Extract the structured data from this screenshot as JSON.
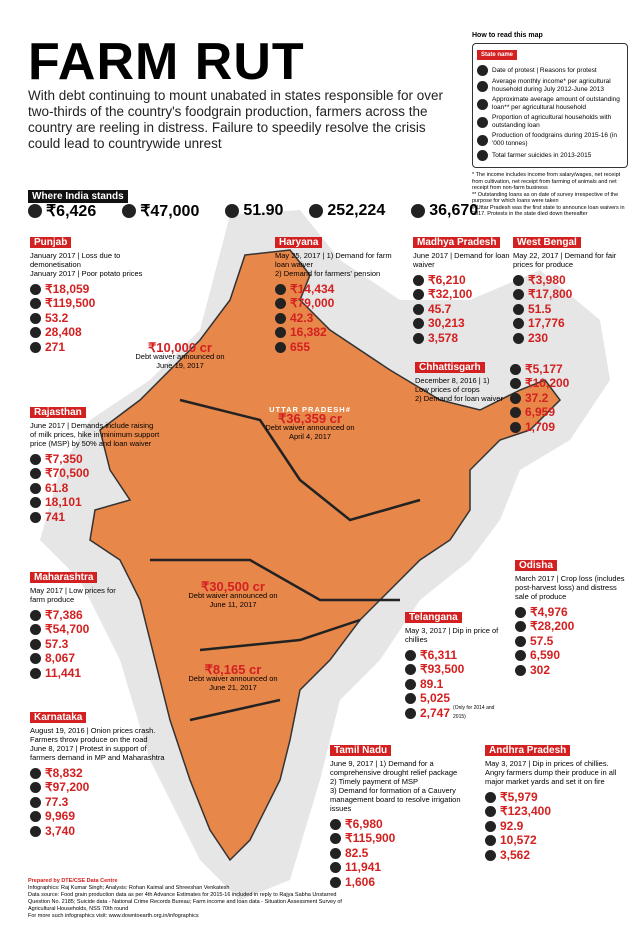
{
  "header": {
    "title": "FARM RUT",
    "intro": "With debt continuing to mount unabated in states responsible for over two-thirds of the country's foodgrain production, farmers across the country are reeling in distress. Failure to speedily resolve the crisis could lead to countrywide unrest"
  },
  "legend": {
    "title": "How to read this map",
    "items": [
      "State name",
      "Date of protest | Reasons for protest",
      "Average monthly income* per agricultural household during July 2012-June 2013",
      "Approximate average amount of outstanding loan** per agricultural household",
      "Proportion of agricultural households with outstanding loan",
      "Production of foodgrains during 2015-16 (in '000 tonnes)",
      "Total farmer suicides in 2013-2015"
    ],
    "notes": [
      "* The income includes income from salary/wages, net receipt from cultivation, net receipt from farming of animals and net receipt from non-farm business",
      "** Outstanding loans as on date of survey irrespective of the purpose for which loans were taken",
      "# Uttar Pradesh was the first state to announce loan waivers in 2017. Protests in the state died down thereafter"
    ]
  },
  "india": {
    "label": "Where India stands",
    "stats": [
      "₹6,426",
      "₹47,000",
      "51.90",
      "252,224",
      "36,670"
    ]
  },
  "states": [
    {
      "name": "Punjab",
      "protests": [
        "January 2017 | Loss due to demonetisation",
        "January 2017 | Poor potato prices"
      ],
      "stats": [
        "₹18,059",
        "₹119,500",
        "53.2",
        "28,408",
        "271"
      ]
    },
    {
      "name": "Haryana",
      "protests": [
        "May 25, 2017 | 1) Demand for farm loan waiver",
        "2) Demand for farmers' pension"
      ],
      "stats": [
        "₹14,434",
        "₹79,000",
        "42.3",
        "16,382",
        "655"
      ]
    },
    {
      "name": "Madhya Pradesh",
      "protests": [
        "June 2017 | Demand for loan waiver"
      ],
      "stats": [
        "₹6,210",
        "₹32,100",
        "45.7",
        "30,213",
        "3,578"
      ]
    },
    {
      "name": "West Bengal",
      "protests": [
        "May 22, 2017 | Demand for fair prices for produce"
      ],
      "stats": [
        "₹3,980",
        "₹17,800",
        "51.5",
        "17,776",
        "230"
      ]
    },
    {
      "name": "Chhattisgarh",
      "protests": [
        "December 8, 2016 | 1) Low prices of crops",
        "2) Demand for loan waiver"
      ],
      "stats": [
        "₹5,177",
        "₹10,200",
        "37.2",
        "6,959",
        "1,709"
      ]
    },
    {
      "name": "Rajasthan",
      "protests": [
        "June 2017 | Demands include raising of milk prices, hike in minimum support price (MSP) by 50% and loan waiver"
      ],
      "stats": [
        "₹7,350",
        "₹70,500",
        "61.8",
        "18,101",
        "741"
      ]
    },
    {
      "name": "Maharashtra",
      "protests": [
        "May 2017 | Low prices for farm produce"
      ],
      "stats": [
        "₹7,386",
        "₹54,700",
        "57.3",
        "8,067",
        "11,441"
      ]
    },
    {
      "name": "Odisha",
      "protests": [
        "March 2017 | Crop loss (includes post-harvest loss) and distress sale of produce"
      ],
      "stats": [
        "₹4,976",
        "₹28,200",
        "57.5",
        "6,590",
        "302"
      ]
    },
    {
      "name": "Telangana",
      "protests": [
        "May 3, 2017 | Dip in price of chillies"
      ],
      "stats": [
        "₹6,311",
        "₹93,500",
        "89.1",
        "5,025",
        "2,747"
      ],
      "note": "(Only for 2014 and 2015)"
    },
    {
      "name": "Karnataka",
      "protests": [
        "August 19, 2016 | Onion prices crash. Farmers throw produce on the road",
        "June 8, 2017 | Protest in support of farmers demand in MP and Maharashtra"
      ],
      "stats": [
        "₹8,832",
        "₹97,200",
        "77.3",
        "9,969",
        "3,740"
      ]
    },
    {
      "name": "Tamil Nadu",
      "protests": [
        "June 9, 2017 | 1) Demand for a comprehensive drought relief package",
        "2) Timely payment of MSP",
        "3) Demand for formation of a Cauvery management board to resolve irrigation issues"
      ],
      "stats": [
        "₹6,980",
        "₹115,900",
        "82.5",
        "11,941",
        "1,606"
      ]
    },
    {
      "name": "Andhra Pradesh",
      "protests": [
        "May 3, 2017 | Dip in prices of chillies. Angry farmers dump their produce in all major market yards and set it on fire"
      ],
      "stats": [
        "₹5,979",
        "₹123,400",
        "92.9",
        "10,572",
        "3,562"
      ]
    }
  ],
  "waivers": [
    {
      "state": "UTTAR PRADESH#",
      "amount": "₹36,359 cr",
      "text": "Debt waiver announced on April 4, 2017"
    },
    {
      "amount": "₹10,000 cr",
      "text": "Debt waiver announced on June 19, 2017"
    },
    {
      "amount": "₹30,500 cr",
      "text": "Debt waiver announced on June 11, 2017"
    },
    {
      "amount": "₹8,165 cr",
      "text": "Debt waiver announced on June 21, 2017"
    }
  ],
  "credits": [
    "Prepared by DTE/CSE Data Centre",
    "Infographics: Raj Kumar Singh; Analysis: Rohan Kaimal and Shreeshan Venkatesh",
    "Data source: Food grain production data as per 4th Advance Estimates for 2015-16 included in reply to Rajya Sabha Unstarred Question No. 2185; Suicide data - National Crime Records Bureau; Farm income and loan data - Situation Assessment Survey of Agricultural Households, NSS 70th round",
    "For more such infographics visit: www.downtoearth.org.in/infographics"
  ]
}
